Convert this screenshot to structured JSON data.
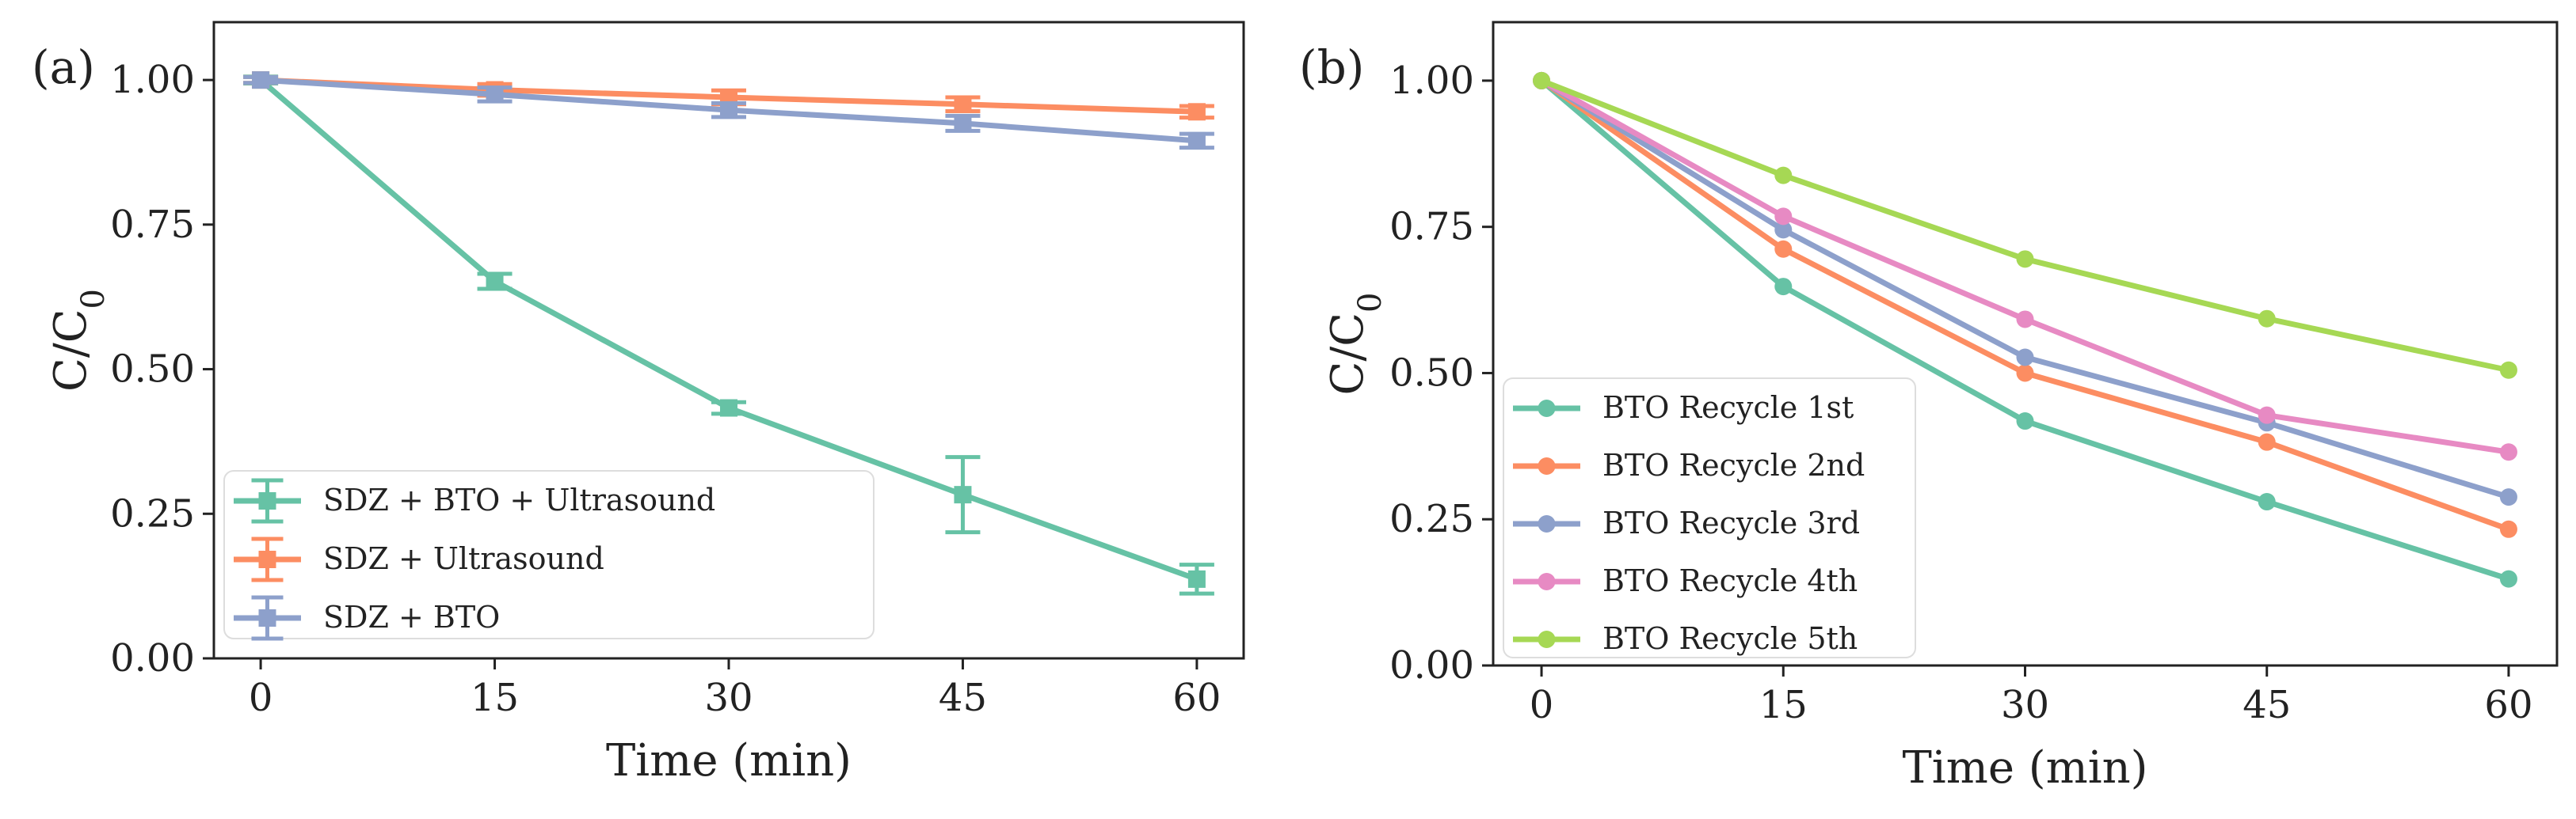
{
  "chart_data": [
    {
      "type": "line",
      "panel_label": "(a)",
      "xlabel": "Time (min)",
      "ylabel": "C/C",
      "ylabel_sub": "0",
      "x": [
        0,
        15,
        30,
        45,
        60
      ],
      "xticks": [
        "0",
        "15",
        "30",
        "45",
        "60"
      ],
      "yticks": [
        "0.00",
        "0.25",
        "0.50",
        "0.75",
        "1.00"
      ],
      "ylim": [
        0,
        1.1
      ],
      "xlim": [
        -3,
        63
      ],
      "legend_position": "lower-left",
      "series": [
        {
          "name": "SDZ + BTO + Ultrasound",
          "color": "#66c2a5",
          "values": [
            1.0,
            0.652,
            0.433,
            0.283,
            0.137
          ],
          "errors": [
            0.006,
            0.013,
            0.01,
            0.065,
            0.025
          ]
        },
        {
          "name": "SDZ + Ultrasound",
          "color": "#fc8d62",
          "values": [
            1.0,
            0.983,
            0.97,
            0.958,
            0.945
          ],
          "errors": [
            0.005,
            0.01,
            0.012,
            0.012,
            0.01
          ]
        },
        {
          "name": "SDZ + BTO",
          "color": "#8da0cb",
          "values": [
            1.0,
            0.975,
            0.948,
            0.925,
            0.895
          ],
          "errors": [
            0.005,
            0.012,
            0.012,
            0.013,
            0.012
          ]
        }
      ]
    },
    {
      "type": "line",
      "panel_label": "(b)",
      "xlabel": "Time (min)",
      "ylabel": "C/C",
      "ylabel_sub": "0",
      "x": [
        0,
        15,
        30,
        45,
        60
      ],
      "xticks": [
        "0",
        "15",
        "30",
        "45",
        "60"
      ],
      "yticks": [
        "0.00",
        "0.25",
        "0.50",
        "0.75",
        "1.00"
      ],
      "ylim": [
        0,
        1.1
      ],
      "xlim": [
        -3,
        63
      ],
      "legend_position": "lower-left",
      "series": [
        {
          "name": "BTO Recycle 1st",
          "color": "#66c2a5",
          "values": [
            1.0,
            0.648,
            0.418,
            0.28,
            0.148
          ]
        },
        {
          "name": "BTO Recycle 2nd",
          "color": "#fc8d62",
          "values": [
            1.0,
            0.712,
            0.5,
            0.382,
            0.233
          ]
        },
        {
          "name": "BTO Recycle 3rd",
          "color": "#8da0cb",
          "values": [
            1.0,
            0.745,
            0.527,
            0.415,
            0.288
          ]
        },
        {
          "name": "BTO Recycle 4th",
          "color": "#e78ac3",
          "values": [
            1.0,
            0.768,
            0.592,
            0.428,
            0.365
          ]
        },
        {
          "name": "BTO Recycle 5th",
          "color": "#a6d854",
          "values": [
            1.0,
            0.838,
            0.695,
            0.593,
            0.505
          ]
        }
      ]
    }
  ]
}
